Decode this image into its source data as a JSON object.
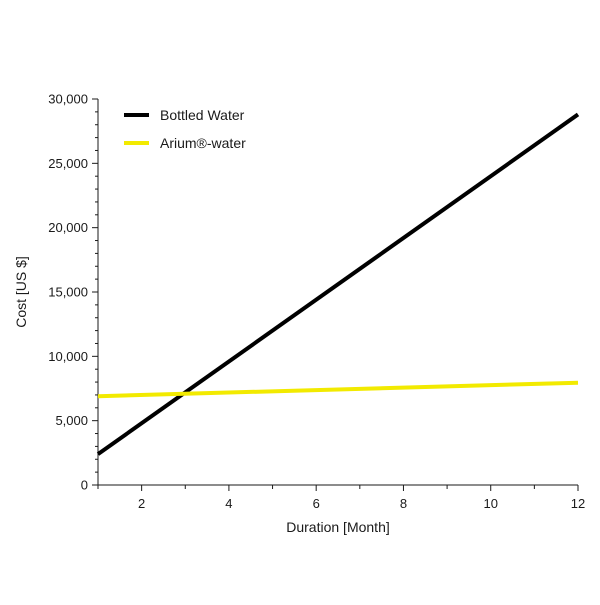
{
  "chart_data": {
    "type": "line",
    "xlabel": "Duration [Month]",
    "ylabel": "Cost [US $]",
    "xlim": [
      1,
      12
    ],
    "ylim": [
      0,
      30000
    ],
    "x_ticks": [
      2,
      4,
      6,
      8,
      10,
      12
    ],
    "x_tick_labels": [
      "2",
      "4",
      "6",
      "8",
      "10",
      "12"
    ],
    "y_ticks": [
      0,
      5000,
      10000,
      15000,
      20000,
      25000,
      30000
    ],
    "y_tick_labels": [
      "0",
      "5,000",
      "10,000",
      "15,000",
      "20,000",
      "25,000",
      "30,000"
    ],
    "grid": false,
    "legend_position": "top-left",
    "series": [
      {
        "name": "Bottled Water",
        "color": "#000000",
        "x": [
          1,
          12
        ],
        "y": [
          2400,
          28800
        ]
      },
      {
        "name": "Arium®-water",
        "color": "#f2ea00",
        "x": [
          1,
          12
        ],
        "y": [
          6900,
          7950
        ]
      }
    ]
  }
}
